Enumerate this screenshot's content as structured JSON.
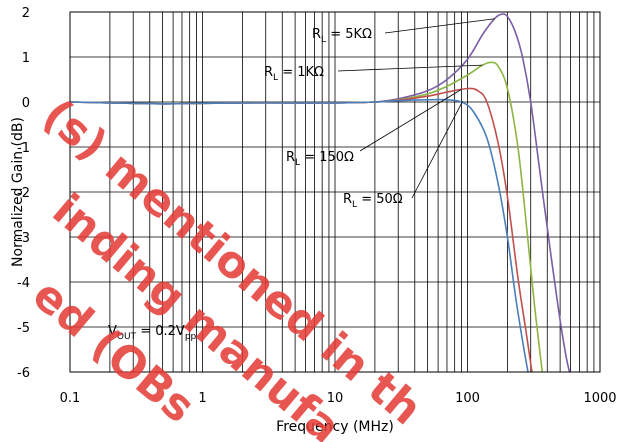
{
  "chart_data": {
    "type": "line",
    "xscale": "log",
    "xlim": [
      0.1,
      1000
    ],
    "ylim": [
      -6,
      2
    ],
    "xticks": [
      0.1,
      1,
      10,
      100,
      1000
    ],
    "xtick_labels": [
      "0.1",
      "1",
      "10",
      "100",
      "1000"
    ],
    "yticks": [
      2,
      1,
      0,
      -1,
      -2,
      -3,
      -4,
      -5,
      -6
    ],
    "ytick_labels": [
      "2",
      "1",
      "0",
      "-1",
      "-2",
      "-3",
      "-4",
      "-5",
      "-6"
    ],
    "xlabel": "Frequency (MHz)",
    "ylabel": "Normalized Gain (dB)",
    "grid": true,
    "series": [
      {
        "name": "RL = 5KΩ",
        "color": "#7b5ea7",
        "points": [
          [
            0.1,
            0
          ],
          [
            0.2,
            -0.02
          ],
          [
            0.5,
            -0.04
          ],
          [
            1,
            -0.03
          ],
          [
            2,
            -0.02
          ],
          [
            5,
            -0.02
          ],
          [
            10,
            -0.02
          ],
          [
            20,
            0
          ],
          [
            30,
            0.07
          ],
          [
            50,
            0.25
          ],
          [
            70,
            0.5
          ],
          [
            100,
            0.95
          ],
          [
            130,
            1.5
          ],
          [
            160,
            1.85
          ],
          [
            180,
            1.95
          ],
          [
            200,
            1.9
          ],
          [
            230,
            1.55
          ],
          [
            260,
            1.0
          ],
          [
            300,
            0
          ],
          [
            350,
            -1.5
          ],
          [
            400,
            -2.8
          ],
          [
            480,
            -4.5
          ],
          [
            550,
            -5.6
          ],
          [
            600,
            -6.1
          ]
        ]
      },
      {
        "name": "RL = 1KΩ",
        "color": "#8db543",
        "points": [
          [
            0.1,
            0
          ],
          [
            0.2,
            -0.02
          ],
          [
            0.5,
            -0.04
          ],
          [
            1,
            -0.03
          ],
          [
            2,
            -0.02
          ],
          [
            5,
            -0.02
          ],
          [
            10,
            -0.02
          ],
          [
            20,
            0
          ],
          [
            30,
            0.05
          ],
          [
            50,
            0.18
          ],
          [
            70,
            0.35
          ],
          [
            100,
            0.6
          ],
          [
            130,
            0.82
          ],
          [
            150,
            0.88
          ],
          [
            170,
            0.8
          ],
          [
            200,
            0.3
          ],
          [
            240,
            -1.0
          ],
          [
            280,
            -2.8
          ],
          [
            320,
            -4.5
          ],
          [
            370,
            -6.1
          ]
        ]
      },
      {
        "name": "RL = 150Ω",
        "color": "#c0504d",
        "points": [
          [
            0.1,
            0
          ],
          [
            0.2,
            -0.02
          ],
          [
            0.5,
            -0.04
          ],
          [
            1,
            -0.03
          ],
          [
            2,
            -0.02
          ],
          [
            5,
            -0.02
          ],
          [
            10,
            -0.02
          ],
          [
            20,
            0
          ],
          [
            30,
            0.04
          ],
          [
            50,
            0.13
          ],
          [
            70,
            0.22
          ],
          [
            100,
            0.3
          ],
          [
            120,
            0.25
          ],
          [
            140,
            0.0
          ],
          [
            170,
            -0.9
          ],
          [
            200,
            -2.1
          ],
          [
            240,
            -3.9
          ],
          [
            280,
            -5.2
          ],
          [
            310,
            -6.1
          ]
        ]
      },
      {
        "name": "RL = 50Ω",
        "color": "#4a7ebb",
        "points": [
          [
            0.1,
            0
          ],
          [
            0.2,
            -0.02
          ],
          [
            0.5,
            -0.04
          ],
          [
            1,
            -0.03
          ],
          [
            2,
            -0.02
          ],
          [
            5,
            -0.02
          ],
          [
            10,
            -0.02
          ],
          [
            20,
            0
          ],
          [
            30,
            0.03
          ],
          [
            50,
            0.05
          ],
          [
            70,
            0.05
          ],
          [
            90,
            0.0
          ],
          [
            110,
            -0.2
          ],
          [
            140,
            -0.8
          ],
          [
            170,
            -1.8
          ],
          [
            200,
            -3.0
          ],
          [
            230,
            -4.3
          ],
          [
            260,
            -5.3
          ],
          [
            290,
            -6.1
          ]
        ]
      }
    ],
    "annotations": [
      {
        "id": "rl5k",
        "main": "R",
        "sub": "L",
        "rest": " = 5KΩ"
      },
      {
        "id": "rl1k",
        "main": "R",
        "sub": "L",
        "rest": " = 1KΩ"
      },
      {
        "id": "rl150",
        "main": "R",
        "sub": "L",
        "rest": " = 150Ω"
      },
      {
        "id": "rl50",
        "main": "R",
        "sub": "L",
        "rest": " = 50Ω"
      },
      {
        "id": "vout",
        "text": "V",
        "sub1": "OUT",
        "mid": " = 0.2V",
        "sub2": "pp"
      }
    ],
    "watermark": [
      "(s) mentioned in th",
      "inding manufa",
      "ed (OBs"
    ]
  }
}
